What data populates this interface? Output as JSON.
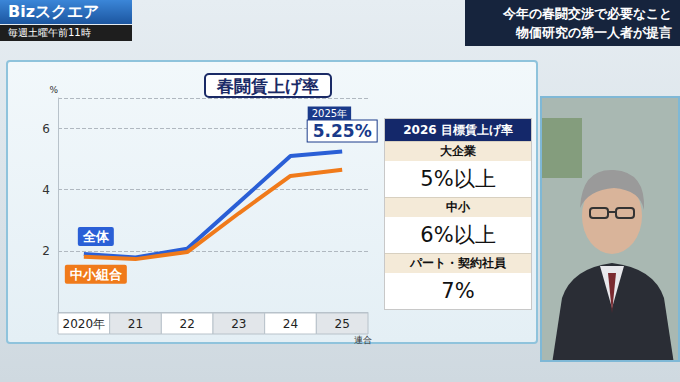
{
  "screen": {
    "logo": "Bizスクエア",
    "schedule": "毎週土曜午前11時",
    "headline": [
      "今年の春闘交渉で必要なこと",
      "物価研究の第一人者が提言"
    ]
  },
  "chart_data": {
    "type": "line",
    "title": "春闘賃上げ率",
    "y_label": "%",
    "source": "連合",
    "categories": [
      "2020年",
      "21",
      "22",
      "23",
      "24",
      "25"
    ],
    "series": [
      {
        "name": "全体",
        "color": "#2a5fd6",
        "values": [
          1.9,
          1.78,
          2.07,
          3.58,
          5.1,
          5.25
        ]
      },
      {
        "name": "中小組合",
        "color": "#f07a1a",
        "values": [
          1.81,
          1.73,
          1.96,
          3.23,
          4.45,
          4.65
        ]
      }
    ],
    "ylim": [
      0,
      7
    ],
    "yticks": [
      2,
      4,
      6
    ],
    "grid": true,
    "annotations": [
      {
        "series": "全体",
        "category": "25",
        "title": "2025年",
        "text": "5.25%"
      }
    ]
  },
  "targets": {
    "title": "2026 目標賃上げ率",
    "rows": [
      {
        "label": "大企業",
        "value": "5%以上"
      },
      {
        "label": "中小",
        "value": "6%以上"
      },
      {
        "label": "パート・契約社員",
        "value": "7%"
      }
    ]
  }
}
